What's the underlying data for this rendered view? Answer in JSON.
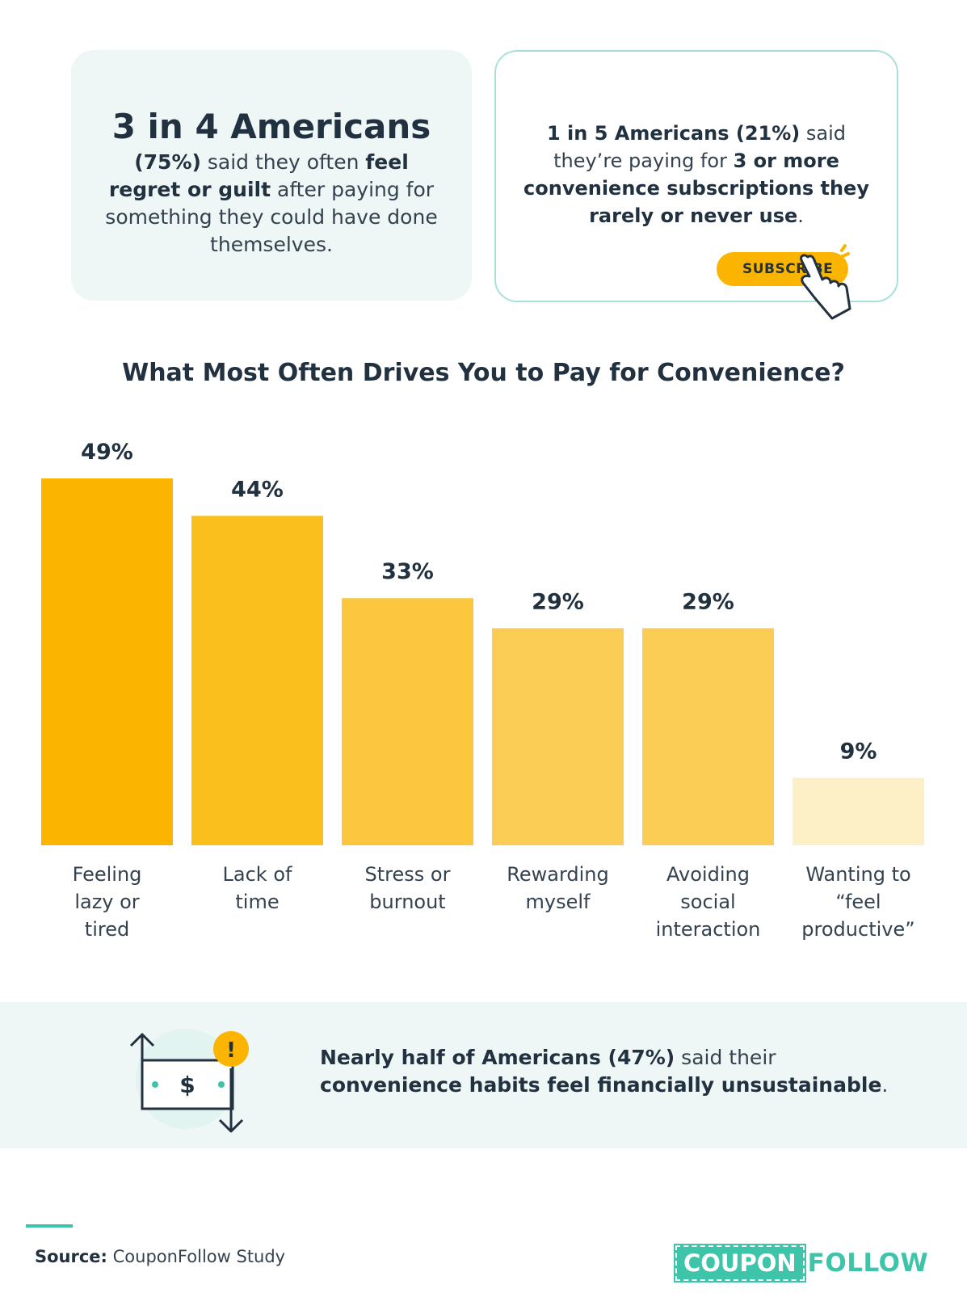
{
  "card_left": {
    "headline": "3 in 4 Americans",
    "stat": "(75%)",
    "text_a": " said they often ",
    "bold_feel": "feel",
    "bold_regret": "regret or guilt",
    "text_b": " after paying for something they could have done themselves."
  },
  "card_right": {
    "bold_a": "1 in 5 Americans (21%)",
    "text_a": " said they’re paying for ",
    "bold_b": "3 or more convenience subscriptions they rarely or never use",
    "text_b": ".",
    "button_label": "SUBSCRIBE"
  },
  "chart_data": {
    "type": "bar",
    "title": "What Most Often Drives You to Pay for Convenience?",
    "categories": [
      [
        "Feeling",
        "lazy or",
        "tired"
      ],
      [
        "Lack of",
        "time"
      ],
      [
        "Stress or",
        "burnout"
      ],
      [
        "Rewarding",
        "myself"
      ],
      [
        "Avoiding",
        "social",
        "interaction"
      ],
      [
        "Wanting to",
        "“feel",
        "productive”"
      ]
    ],
    "values": [
      49,
      44,
      33,
      29,
      29,
      9
    ],
    "value_labels": [
      "49%",
      "44%",
      "33%",
      "29%",
      "29%",
      "9%"
    ],
    "colors": [
      "#fbb400",
      "#fbbf1d",
      "#fcc73f",
      "#fccd55",
      "#fccd55",
      "#fdefc6"
    ],
    "ylim": [
      0,
      49
    ],
    "xlabel": "",
    "ylabel": ""
  },
  "bottom": {
    "bold_a": "Nearly half of Americans (47%)",
    "text_a": " said their ",
    "bold_b": "convenience habits feel financially unsustainable",
    "text_b": ".",
    "icon_symbol": "$",
    "alert_symbol": "!"
  },
  "source": {
    "label": "Source:",
    "value": " CouponFollow Study"
  },
  "logo": {
    "part_a": "COUPON",
    "part_b": "FOLLOW"
  },
  "colors": {
    "accent": "#fbb400",
    "teal": "#3dc4a9",
    "panel": "#eef7f6",
    "text": "#22313f"
  }
}
